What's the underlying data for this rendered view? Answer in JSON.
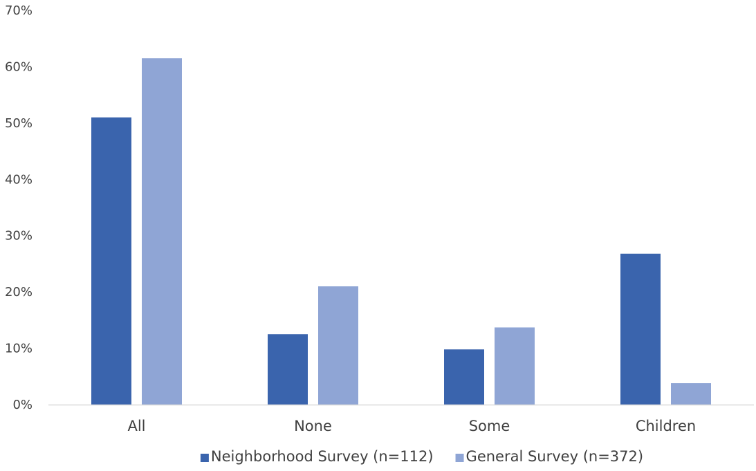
{
  "chart_data": {
    "type": "bar",
    "title": "",
    "xlabel": "",
    "ylabel": "",
    "categories": [
      "All",
      "None",
      "Some",
      "Children"
    ],
    "series": [
      {
        "name": "Neighborhood Survey (n=112)",
        "color": "#3a64ad",
        "values": [
          51,
          12.5,
          9.8,
          26.8
        ]
      },
      {
        "name": "General Survey (n=372)",
        "color": "#8fa5d5",
        "values": [
          61.5,
          21,
          13.7,
          3.8
        ]
      }
    ],
    "ylim": [
      0,
      70
    ],
    "yticks": [
      0,
      10,
      20,
      30,
      40,
      50,
      60,
      70
    ],
    "ytick_labels": [
      "0%",
      "10%",
      "20%",
      "30%",
      "40%",
      "50%",
      "60%",
      "70%"
    ],
    "grid": false,
    "legend_position": "bottom-center",
    "axis_color": "#d9d9d9"
  }
}
